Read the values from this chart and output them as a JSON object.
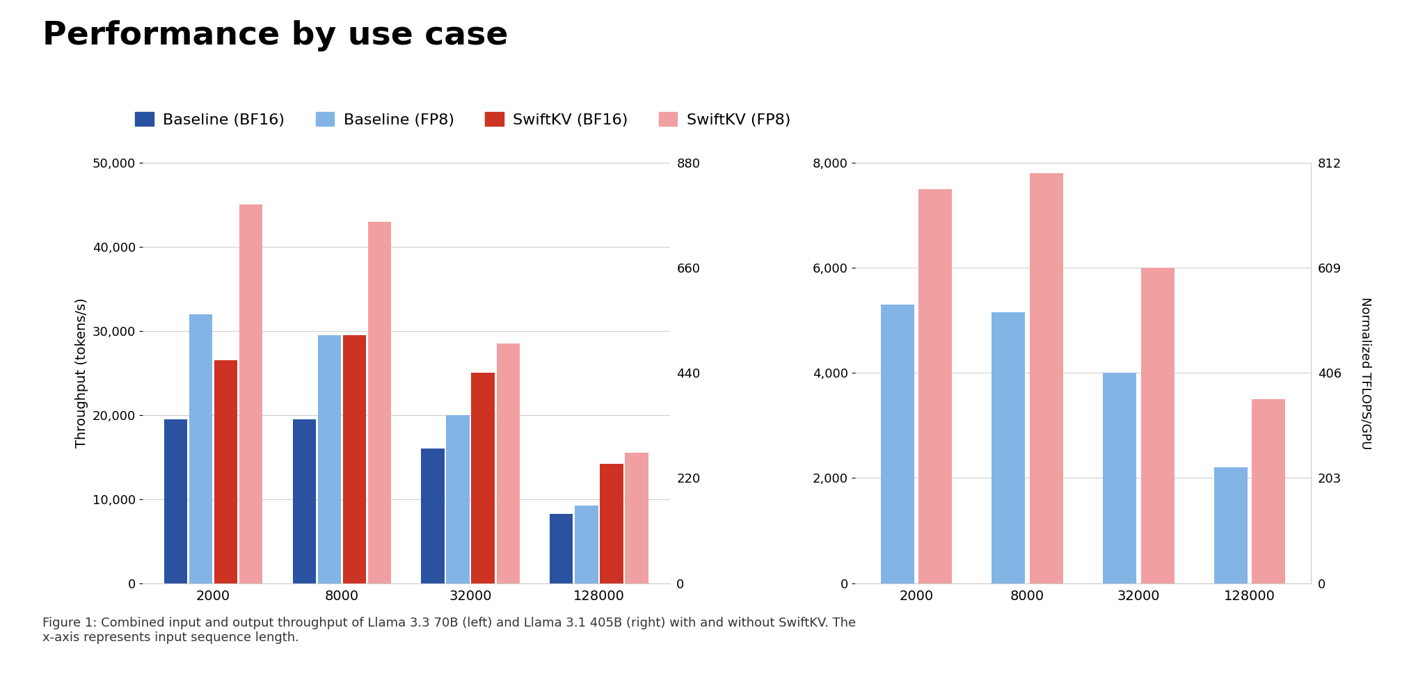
{
  "title": "Performance by use case",
  "legend_labels": [
    "Baseline (BF16)",
    "Baseline (FP8)",
    "SwiftKV (BF16)",
    "SwiftKV (FP8)"
  ],
  "colors": {
    "baseline_bf16": "#2a52a0",
    "baseline_fp8": "#82b4e6",
    "swiftkv_bf16": "#cc3322",
    "swiftkv_fp8": "#f0a0a0"
  },
  "left_chart": {
    "ylabel": "Throughput (tokens/s)",
    "categories": [
      "2000",
      "8000",
      "32000",
      "128000"
    ],
    "ylim": [
      0,
      50000
    ],
    "yticks": [
      0,
      10000,
      20000,
      30000,
      40000,
      50000
    ],
    "ytick_labels": [
      "0",
      "10,000",
      "20,000",
      "30,000",
      "40,000",
      "50,000"
    ],
    "right_ytick_labels": [
      "0",
      "220",
      "440",
      "660",
      "880"
    ],
    "data": {
      "baseline_bf16": [
        19500,
        19500,
        16000,
        8200
      ],
      "baseline_fp8": [
        32000,
        29500,
        20000,
        9200
      ],
      "swiftkv_bf16": [
        26500,
        29500,
        25000,
        14200
      ],
      "swiftkv_fp8": [
        45000,
        43000,
        28500,
        15500
      ]
    }
  },
  "right_chart": {
    "categories": [
      "2000",
      "8000",
      "32000",
      "128000"
    ],
    "ylim": [
      0,
      8000
    ],
    "left_ytick_vals": [
      0,
      2000,
      4000,
      6000,
      8000
    ],
    "left_ytick_labels": [
      "0",
      "2,000",
      "4,000",
      "6,000",
      "8,000"
    ],
    "right_ytick_vals": [
      0,
      203,
      406,
      609,
      812
    ],
    "right_ytick_labels": [
      "0",
      "203",
      "406",
      "609",
      "812"
    ],
    "right_ylabel": "Normalized TFLOPS/GPU",
    "data": {
      "baseline_fp8": [
        5300,
        5150,
        4000,
        2200
      ],
      "swiftkv_fp8": [
        7500,
        7800,
        6000,
        3500
      ]
    }
  },
  "caption": "Figure 1: Combined input and output throughput of Llama 3.3 70B (left) and Llama 3.1 405B (right) with and without SwiftKV. The\nx-axis represents input sequence length.",
  "background_color": "#ffffff"
}
